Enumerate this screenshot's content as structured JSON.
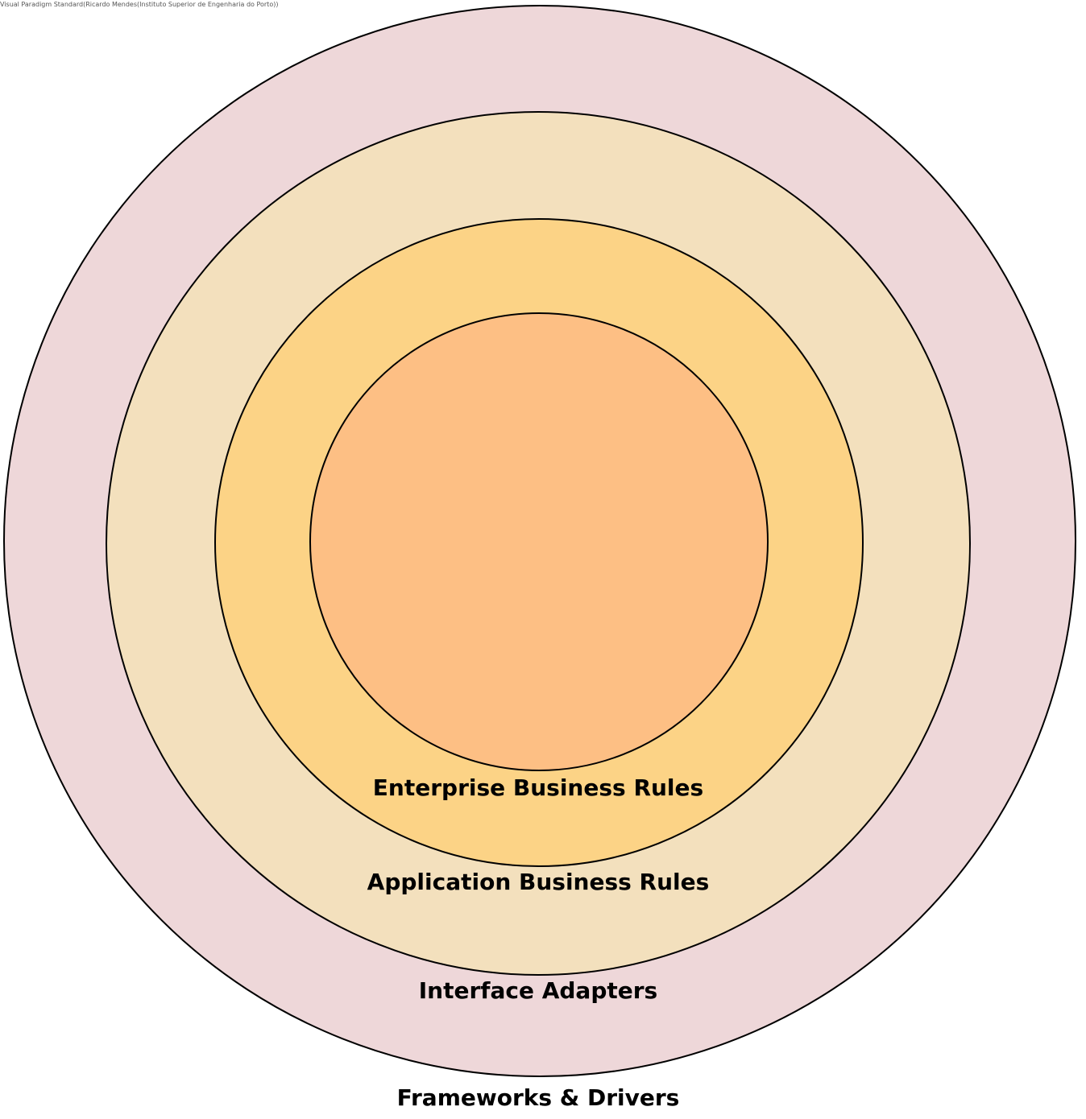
{
  "watermark": "Visual Paradigm Standard(Ricardo Mendes(Instituto Superior de Engenharia do Porto))",
  "layers": [
    {
      "label": "Frameworks & Drivers",
      "color": "#eed7d9"
    },
    {
      "label": "Interface Adapters",
      "color": "#f3e0bd"
    },
    {
      "label": "Application Business Rules",
      "color": "#fcd386"
    },
    {
      "label": "Enterprise Business Rules",
      "color": "#fdbf84"
    }
  ]
}
